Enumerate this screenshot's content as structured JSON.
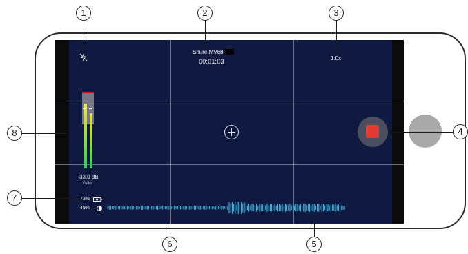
{
  "device": {
    "name": "Shure MV88"
  },
  "recording": {
    "timer": "00:01:03"
  },
  "zoom": {
    "level": "1.0x"
  },
  "gain": {
    "value": "33.0 dB",
    "label": "Gain"
  },
  "status": {
    "battery_percent": "73%",
    "brightness_percent": "49%"
  },
  "meter": {
    "left_level": 0.85,
    "right_level": 0.73
  },
  "colors": {
    "screen": "#101a40",
    "record": "#e53935",
    "waveform": "#3fb8e6"
  },
  "icons": {
    "flash": "flash-off-icon",
    "focus": "focus-crosshair-icon",
    "record": "stop-record-icon",
    "battery": "battery-icon",
    "brightness": "brightness-icon"
  },
  "callouts": [
    "1",
    "2",
    "3",
    "4",
    "5",
    "6",
    "7",
    "8"
  ]
}
